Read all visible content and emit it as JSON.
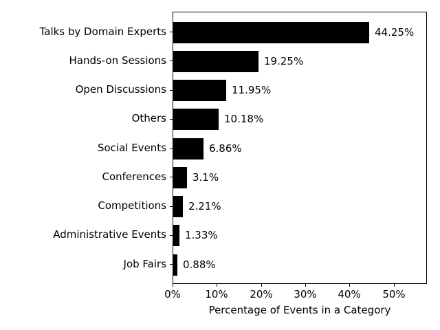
{
  "chart_data": {
    "type": "bar",
    "orientation": "horizontal",
    "title": "",
    "xlabel": "Percentage of Events in a Category",
    "ylabel": "",
    "categories": [
      "Talks by Domain Experts",
      "Hands-on Sessions",
      "Open Discussions",
      "Others",
      "Social Events",
      "Conferences",
      "Competitions",
      "Administrative Events",
      "Job Fairs"
    ],
    "values": [
      44.25,
      19.25,
      11.95,
      10.18,
      6.86,
      3.1,
      2.21,
      1.33,
      0.88
    ],
    "value_labels": [
      "44.25%",
      "19.25%",
      "11.95%",
      "10.18%",
      "6.86%",
      "3.1%",
      "2.21%",
      "1.33%",
      "0.88%"
    ],
    "xlim": [
      0,
      57.5
    ],
    "x_ticks": [
      0,
      10,
      20,
      30,
      40,
      50
    ],
    "x_tick_labels": [
      "0%",
      "10%",
      "20%",
      "30%",
      "40%",
      "50%"
    ],
    "bar_color": "#000000",
    "axis_color": "#000000",
    "text_color": "#000000",
    "background_color": "#ffffff",
    "grid": false,
    "legend": null
  }
}
